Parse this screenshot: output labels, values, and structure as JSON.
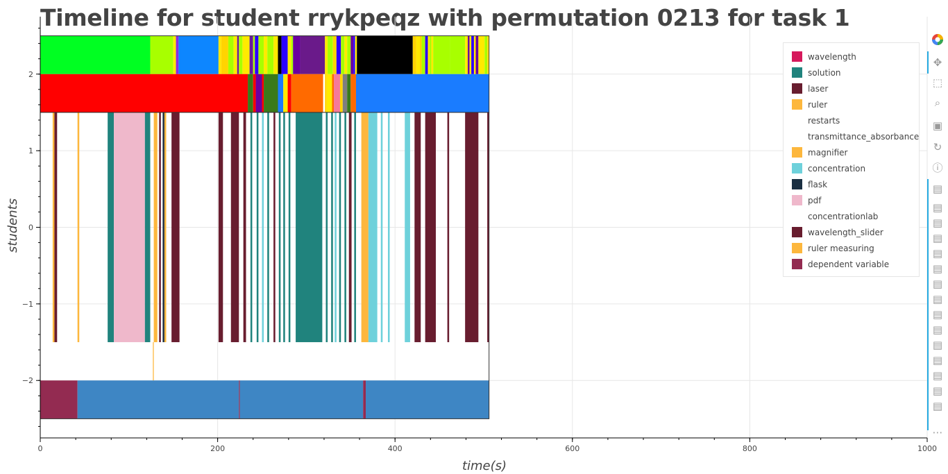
{
  "chart_data": {
    "type": "timeline",
    "title": "Timeline for student rrykpeqz with permutation 0213 for task 1",
    "xlabel": "time(s)",
    "ylabel": "students",
    "xlim": [
      0,
      1000
    ],
    "ylim": [
      -2.75,
      2.75
    ],
    "xticks": [
      {
        "value": 0,
        "label": "0"
      },
      {
        "value": 200,
        "label": "200"
      },
      {
        "value": 400,
        "label": "400"
      },
      {
        "value": 600,
        "label": "600"
      },
      {
        "value": 800,
        "label": "800"
      },
      {
        "value": 1000,
        "label": "1000"
      }
    ],
    "yticks": [
      {
        "value": 2,
        "label": "2"
      },
      {
        "value": 1,
        "label": "1"
      },
      {
        "value": 0,
        "label": "0"
      },
      {
        "value": -1,
        "label": "−1"
      },
      {
        "value": -2,
        "label": "−2"
      }
    ],
    "x_minor_step": 40,
    "y_minor_step": 0.2,
    "grid": true,
    "legend_position": "top-right",
    "legend": [
      {
        "label": "wavelength",
        "color": "#d6195c"
      },
      {
        "label": "solution",
        "color": "#20837d"
      },
      {
        "label": "laser",
        "color": "#681d2f"
      },
      {
        "label": "ruler",
        "color": "#fdb73d"
      },
      {
        "label": "restarts",
        "color": ""
      },
      {
        "label": "transmittance_absorbance",
        "color": ""
      },
      {
        "label": "magnifier",
        "color": "#fdb73d"
      },
      {
        "label": "concentration",
        "color": "#6ed1db"
      },
      {
        "label": "flask",
        "color": "#1a2f42"
      },
      {
        "label": "pdf",
        "color": "#efb8cb"
      },
      {
        "label": "concentrationlab",
        "color": ""
      },
      {
        "label": "wavelength_slider",
        "color": "#681d2f"
      },
      {
        "label": "ruler measuring",
        "color": "#fdb73d"
      },
      {
        "label": "dependent variable",
        "color": "#932b51"
      }
    ],
    "rows": [
      {
        "y_range": [
          2.0,
          2.5
        ],
        "segments": [
          [
            0,
            124,
            "#00ff22"
          ],
          [
            124,
            150,
            "#a8ff00"
          ],
          [
            150,
            153,
            "#ffea00"
          ],
          [
            153,
            156,
            "#8a2be2"
          ],
          [
            156,
            201,
            "#0d86ff"
          ],
          [
            201,
            204,
            "#ffe600"
          ],
          [
            204,
            212,
            "#ffd400"
          ],
          [
            212,
            218,
            "#a8ff00"
          ],
          [
            218,
            222,
            "#ffea00"
          ],
          [
            222,
            224,
            "#6a1a9a"
          ],
          [
            224,
            228,
            "#a8ff00"
          ],
          [
            228,
            236,
            "#ffea00"
          ],
          [
            236,
            240,
            "#6a1a9a"
          ],
          [
            240,
            242,
            "#a8ff00"
          ],
          [
            242,
            246,
            "#2b00ff"
          ],
          [
            246,
            252,
            "#a8ff00"
          ],
          [
            252,
            256,
            "#ffea00"
          ],
          [
            256,
            263,
            "#a8ff00"
          ],
          [
            263,
            268,
            "#ffea00"
          ],
          [
            268,
            272,
            "#000000"
          ],
          [
            272,
            279,
            "#2b00ff"
          ],
          [
            279,
            283,
            "#ffea00"
          ],
          [
            283,
            285,
            "#a8ff00"
          ],
          [
            285,
            293,
            "#6a00a0"
          ],
          [
            293,
            321,
            "#6a1a8a"
          ],
          [
            321,
            324,
            "#ffea00"
          ],
          [
            324,
            330,
            "#a8ff00"
          ],
          [
            330,
            334,
            "#ffd400"
          ],
          [
            334,
            339,
            "#2b00ff"
          ],
          [
            339,
            343,
            "#a8ff00"
          ],
          [
            343,
            346,
            "#ffea00"
          ],
          [
            346,
            350,
            "#a8ff00"
          ],
          [
            350,
            353,
            "#6a00a0"
          ],
          [
            353,
            355,
            "#2b00ff"
          ],
          [
            355,
            357,
            "#ffea00"
          ],
          [
            357,
            420,
            "#000000"
          ],
          [
            420,
            424,
            "#ffd400"
          ],
          [
            424,
            428,
            "#ffea00"
          ],
          [
            428,
            430,
            "#ffd400"
          ],
          [
            430,
            434,
            "#a8ff00"
          ],
          [
            434,
            437,
            "#2b00ff"
          ],
          [
            437,
            439,
            "#ffea00"
          ],
          [
            439,
            441,
            "#a8ff00"
          ],
          [
            441,
            443,
            "#ffea00"
          ],
          [
            443,
            462,
            "#a8ff00"
          ],
          [
            462,
            479,
            "#a8ff00"
          ],
          [
            479,
            482,
            "#ffea00"
          ],
          [
            482,
            484,
            "#6a00a0"
          ],
          [
            484,
            486,
            "#ffea00"
          ],
          [
            486,
            489,
            "#2b00ff"
          ],
          [
            489,
            491,
            "#ffea00"
          ],
          [
            491,
            494,
            "#6a00a0"
          ],
          [
            494,
            501,
            "#ffea00"
          ],
          [
            501,
            504,
            "#a8ff00"
          ],
          [
            504,
            505,
            "#ffd400"
          ],
          [
            505,
            506,
            "#ffea00"
          ]
        ]
      },
      {
        "y_range": [
          1.5,
          2.0
        ],
        "segments": [
          [
            0,
            234,
            "#ff0000"
          ],
          [
            234,
            240,
            "#3a7a1a"
          ],
          [
            240,
            243,
            "#ff0000"
          ],
          [
            243,
            250,
            "#6a00a0"
          ],
          [
            250,
            252,
            "#ff0000"
          ],
          [
            252,
            268,
            "#3a7a1a"
          ],
          [
            268,
            274,
            "#1a7cff"
          ],
          [
            274,
            279,
            "#ffea00"
          ],
          [
            279,
            283,
            "#ff0000"
          ],
          [
            283,
            319,
            "#ff6a00"
          ],
          [
            319,
            321,
            "#ffffff"
          ],
          [
            321,
            323,
            "#ffd400"
          ],
          [
            323,
            329,
            "#ffea00"
          ],
          [
            329,
            331,
            "#ff6a00"
          ],
          [
            331,
            338,
            "#f57a9a"
          ],
          [
            338,
            341,
            "#ffd400"
          ],
          [
            341,
            346,
            "#7f7f7f"
          ],
          [
            346,
            350,
            "#3a7a1a"
          ],
          [
            350,
            356,
            "#ff6a00"
          ],
          [
            356,
            506,
            "#1a7cff"
          ]
        ]
      },
      {
        "y_range": [
          -1.5,
          1.5
        ],
        "segments": [
          [
            14,
            16,
            "#fdb73d"
          ],
          [
            16,
            19,
            "#681d2f"
          ],
          [
            42,
            44,
            "#fdb73d"
          ],
          [
            76,
            83,
            "#20837d"
          ],
          [
            83,
            118,
            "#efb8cb"
          ],
          [
            118,
            124,
            "#20837d"
          ],
          [
            128,
            132,
            "#fdb73d"
          ],
          [
            134,
            136,
            "#681d2f"
          ],
          [
            138,
            140,
            "#1a2f42"
          ],
          [
            140,
            142,
            "#fdb73d"
          ],
          [
            148,
            157,
            "#681d2f"
          ],
          [
            201,
            206,
            "#681d2f"
          ],
          [
            215,
            224,
            "#681d2f"
          ],
          [
            229,
            232,
            "#681d2f"
          ],
          [
            237,
            239,
            "#20837d"
          ],
          [
            244,
            246,
            "#20837d"
          ],
          [
            250,
            252,
            "#6ed1db"
          ],
          [
            256,
            258,
            "#20837d"
          ],
          [
            263,
            265,
            "#681d2f"
          ],
          [
            269,
            271,
            "#20837d"
          ],
          [
            274,
            276,
            "#20837d"
          ],
          [
            280,
            282,
            "#20837d"
          ],
          [
            288,
            318,
            "#20837d"
          ],
          [
            322,
            324,
            "#20837d"
          ],
          [
            328,
            330,
            "#20837d"
          ],
          [
            332,
            334,
            "#6ed1db"
          ],
          [
            337,
            339,
            "#20837d"
          ],
          [
            343,
            345,
            "#20837d"
          ],
          [
            348,
            351,
            "#681d2f"
          ],
          [
            354,
            356,
            "#20837d"
          ],
          [
            362,
            370,
            "#fdb73d"
          ],
          [
            370,
            380,
            "#6ed1db"
          ],
          [
            384,
            386,
            "#6ed1db"
          ],
          [
            392,
            394,
            "#6ed1db"
          ],
          [
            411,
            417,
            "#6ed1db"
          ],
          [
            422,
            429,
            "#681d2f"
          ],
          [
            434,
            446,
            "#681d2f"
          ],
          [
            459,
            461,
            "#681d2f"
          ],
          [
            479,
            494,
            "#681d2f"
          ],
          [
            504,
            506,
            "#681d2f"
          ]
        ]
      },
      {
        "y_range": [
          -2.0,
          -1.5
        ],
        "segments": [
          [
            127,
            128,
            "#fdb73d"
          ]
        ]
      },
      {
        "y_range": [
          -2.5,
          -2.0
        ],
        "segments": [
          [
            0,
            42,
            "#932b51"
          ],
          [
            42,
            224,
            "#3e86c4"
          ],
          [
            224,
            225,
            "#932b51"
          ],
          [
            225,
            364,
            "#3e86c4"
          ],
          [
            364,
            367,
            "#932b51"
          ],
          [
            367,
            506,
            "#3e86c4"
          ]
        ]
      }
    ],
    "row_borders": [
      {
        "x": [
          0,
          506
        ],
        "y": [
          1.5,
          2.5
        ]
      },
      {
        "x": [
          0,
          506
        ],
        "y": [
          -2.5,
          1.5
        ]
      }
    ]
  },
  "toolbar": {
    "icons": [
      "bokeh-logo-icon",
      "pan-icon",
      "box-zoom-icon",
      "wheel-zoom-icon",
      "save-icon",
      "reset-icon",
      "help-icon",
      "hover-icon",
      "hover-icon",
      "hover-icon",
      "hover-icon",
      "hover-icon",
      "hover-icon",
      "hover-icon",
      "hover-icon",
      "hover-icon",
      "hover-icon",
      "hover-icon",
      "hover-icon",
      "hover-icon",
      "hover-icon",
      "hover-icon",
      "more-icon"
    ]
  }
}
